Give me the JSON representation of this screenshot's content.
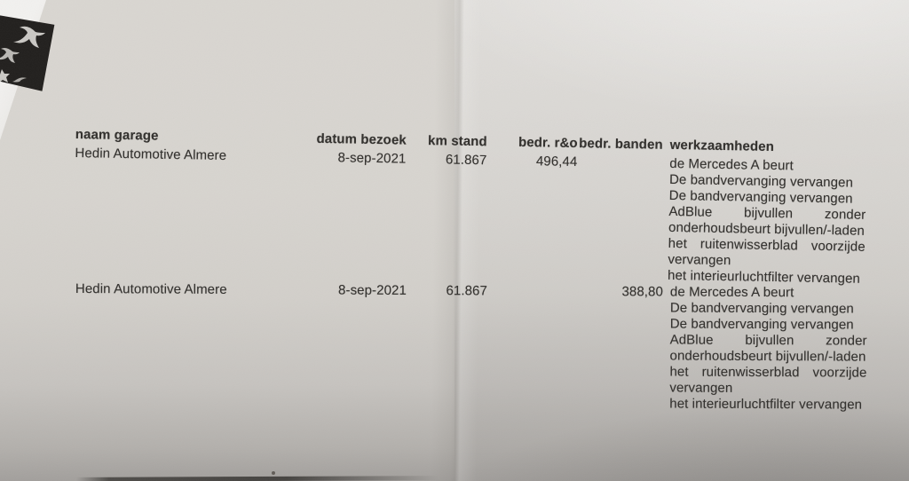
{
  "document": {
    "kind": "printed maintenance-history table (photo of paper)",
    "headers": {
      "naam_garage": "naam garage",
      "datum_bezoek": "datum bezoek",
      "km_stand": "km stand",
      "bedr_ro": "bedr. r&o",
      "bedr_banden": "bedr. banden",
      "werkzaamheden": "werkzaamheden"
    },
    "rows": [
      {
        "naam_garage": "Hedin Automotive Almere",
        "datum_bezoek": "8-sep-2021",
        "km_stand": "61.867",
        "bedr_ro": "496,44",
        "bedr_banden": "",
        "werkzaamheden_lines": [
          {
            "text": "de Mercedes A beurt",
            "justify": false
          },
          {
            "text": "De bandvervanging vervangen",
            "justify": false
          },
          {
            "text": "De bandvervanging vervangen",
            "justify": false
          },
          {
            "text": "AdBlue bijvullen zonder",
            "justify": true
          },
          {
            "text": "onderhoudsbeurt bijvullen/-laden",
            "justify": false
          },
          {
            "text": "het ruitenwisserblad voorzijde",
            "justify": true
          },
          {
            "text": "vervangen",
            "justify": false
          },
          {
            "text": "het interieurluchtfilter vervangen",
            "justify": false
          }
        ]
      },
      {
        "naam_garage": "Hedin Automotive Almere",
        "datum_bezoek": "8-sep-2021",
        "km_stand": "61.867",
        "bedr_ro": "",
        "bedr_banden": "388,80",
        "werkzaamheden_lines": [
          {
            "text": "de Mercedes A beurt",
            "justify": false
          },
          {
            "text": "De bandvervanging vervangen",
            "justify": false
          },
          {
            "text": "De bandvervanging vervangen",
            "justify": false
          },
          {
            "text": "AdBlue bijvullen zonder",
            "justify": true
          },
          {
            "text": "onderhoudsbeurt bijvullen/-laden",
            "justify": false
          },
          {
            "text": "het ruitenwisserblad voorzijde",
            "justify": true
          },
          {
            "text": "vervangen",
            "justify": false
          },
          {
            "text": "het interieurluchtfilter vervangen",
            "justify": false
          }
        ]
      }
    ]
  },
  "icons": {
    "corner_patch": "dark-label-with-white-swallow-silhouettes"
  },
  "colors": {
    "paper_top": "#d9d6d1",
    "paper_bottom_shadow": "#a29f9c",
    "paper_right_light": "#e1dfdc",
    "ink": "#312f2c",
    "under_sheet_white": "#f2f1ef",
    "patch_black": "#211f1d",
    "bottom_edge_dark": "#2a2825"
  }
}
